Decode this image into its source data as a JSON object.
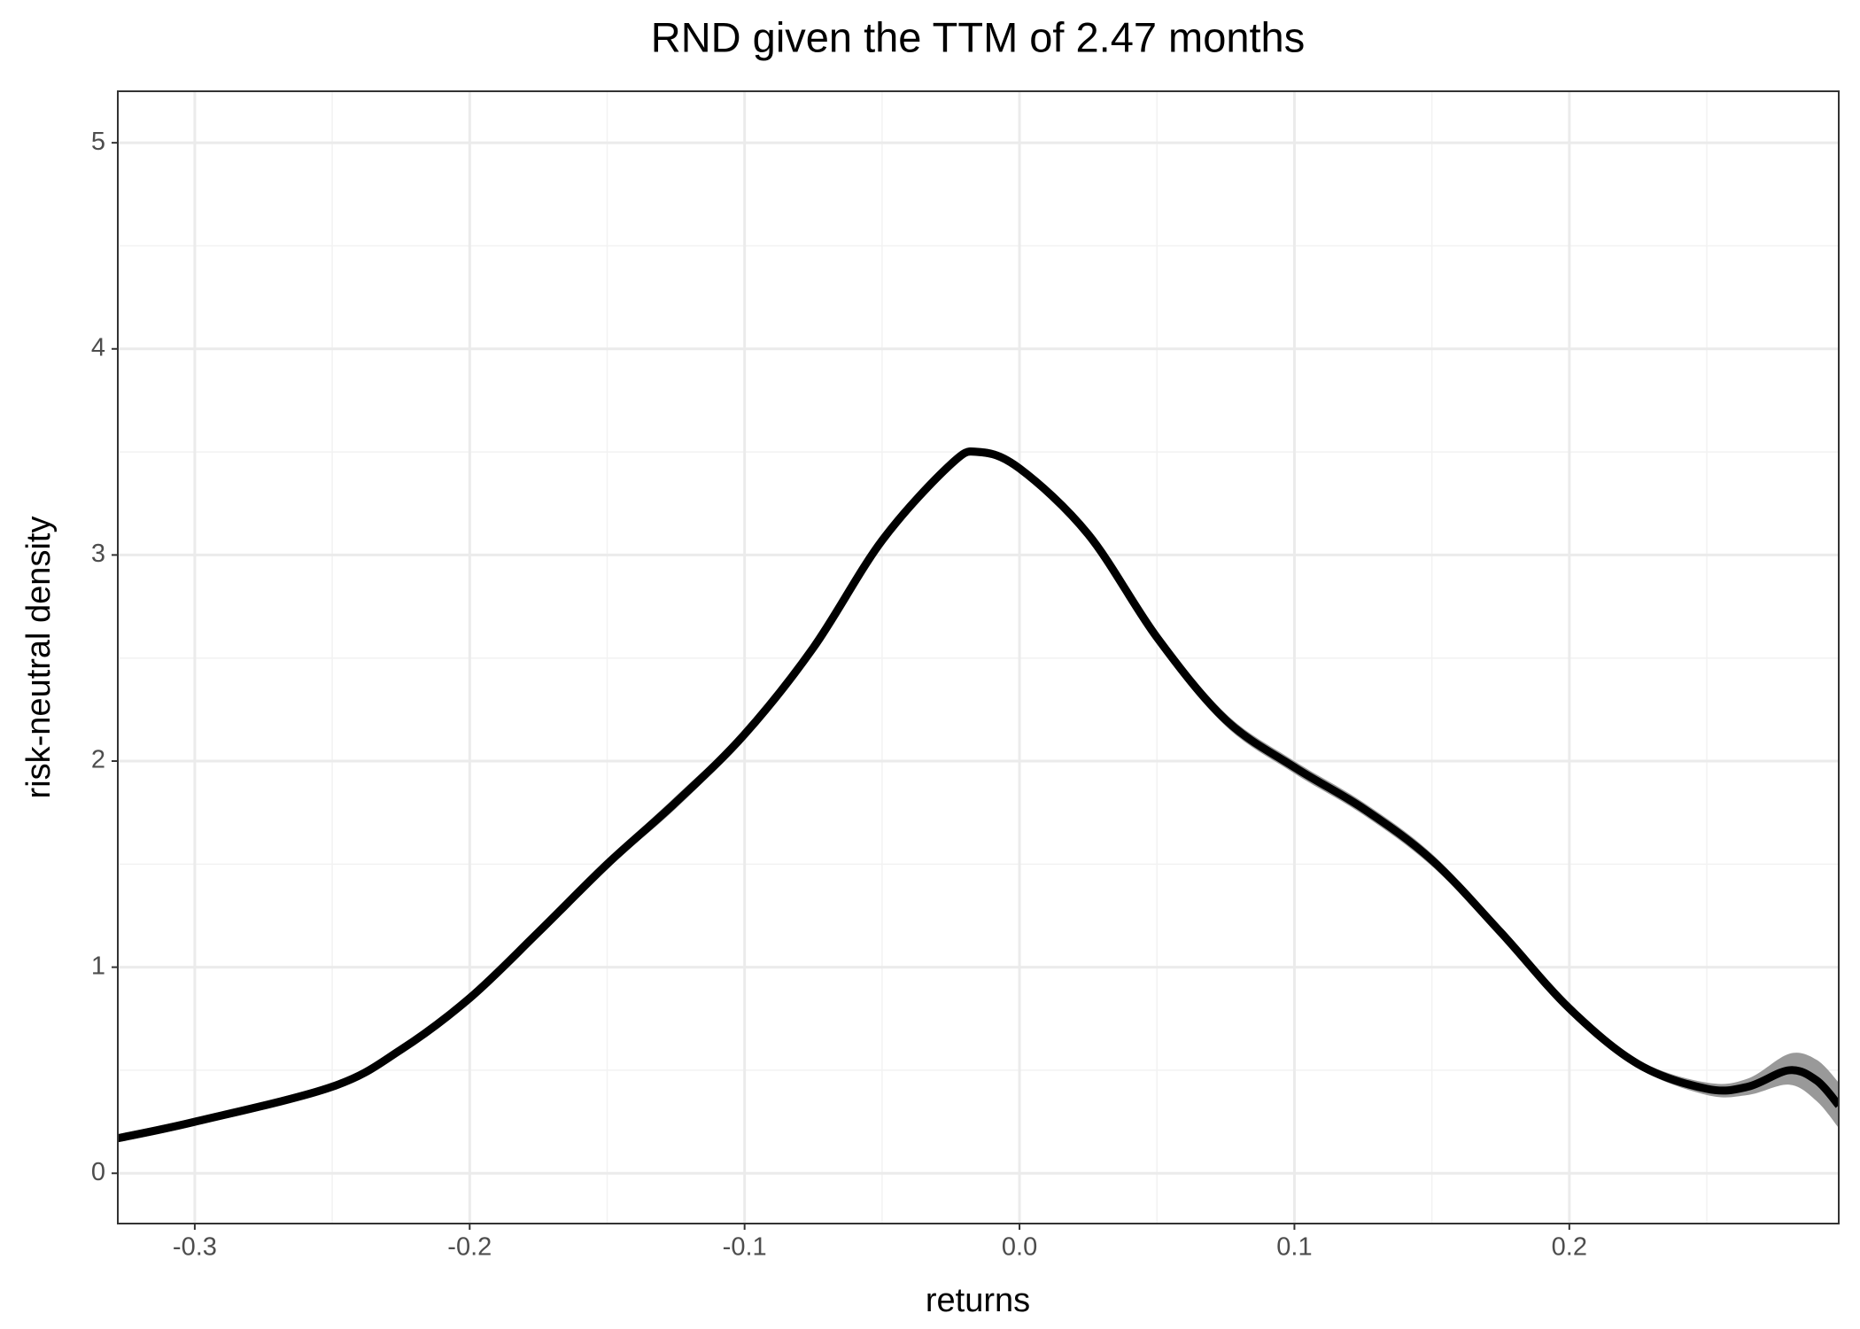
{
  "chart_data": {
    "type": "line",
    "title": "RND given the TTM of 2.47 months",
    "x_label": "returns",
    "y_label": "risk-neutral density",
    "x": [
      -0.328,
      -0.3,
      -0.25,
      -0.225,
      -0.2,
      -0.175,
      -0.15,
      -0.125,
      -0.1,
      -0.075,
      -0.05,
      -0.025,
      -0.015,
      0.0,
      0.025,
      0.05,
      0.075,
      0.1,
      0.125,
      0.15,
      0.175,
      0.2,
      0.225,
      0.25,
      0.265,
      0.28,
      0.29,
      0.298
    ],
    "values": [
      0.17,
      0.25,
      0.42,
      0.6,
      0.85,
      1.17,
      1.5,
      1.8,
      2.13,
      2.55,
      3.07,
      3.44,
      3.5,
      3.42,
      3.1,
      2.6,
      2.2,
      1.97,
      1.77,
      1.52,
      1.17,
      0.8,
      0.53,
      0.41,
      0.42,
      0.5,
      0.45,
      0.33
    ],
    "lower": [
      0.15,
      0.23,
      0.4,
      0.58,
      0.83,
      1.15,
      1.48,
      1.77,
      2.11,
      2.53,
      3.05,
      3.42,
      3.48,
      3.4,
      3.08,
      2.57,
      2.17,
      1.94,
      1.74,
      1.49,
      1.15,
      0.78,
      0.51,
      0.38,
      0.38,
      0.43,
      0.35,
      0.22
    ],
    "upper": [
      0.19,
      0.27,
      0.44,
      0.62,
      0.87,
      1.19,
      1.52,
      1.83,
      2.15,
      2.57,
      3.09,
      3.46,
      3.52,
      3.44,
      3.12,
      2.63,
      2.23,
      2.0,
      1.8,
      1.55,
      1.19,
      0.82,
      0.55,
      0.44,
      0.46,
      0.58,
      0.55,
      0.44
    ],
    "color": "#000000",
    "band_color": "#999999",
    "xlim": [
      -0.328,
      0.298
    ],
    "ylim": [
      -0.244,
      5.25
    ],
    "xticks": [
      -0.3,
      -0.2,
      -0.1,
      {
        "value": 0,
        "label": "0.0"
      },
      0.1,
      0.2
    ],
    "yticks": [
      0,
      1,
      2,
      3,
      4,
      5
    ],
    "grid": true
  }
}
